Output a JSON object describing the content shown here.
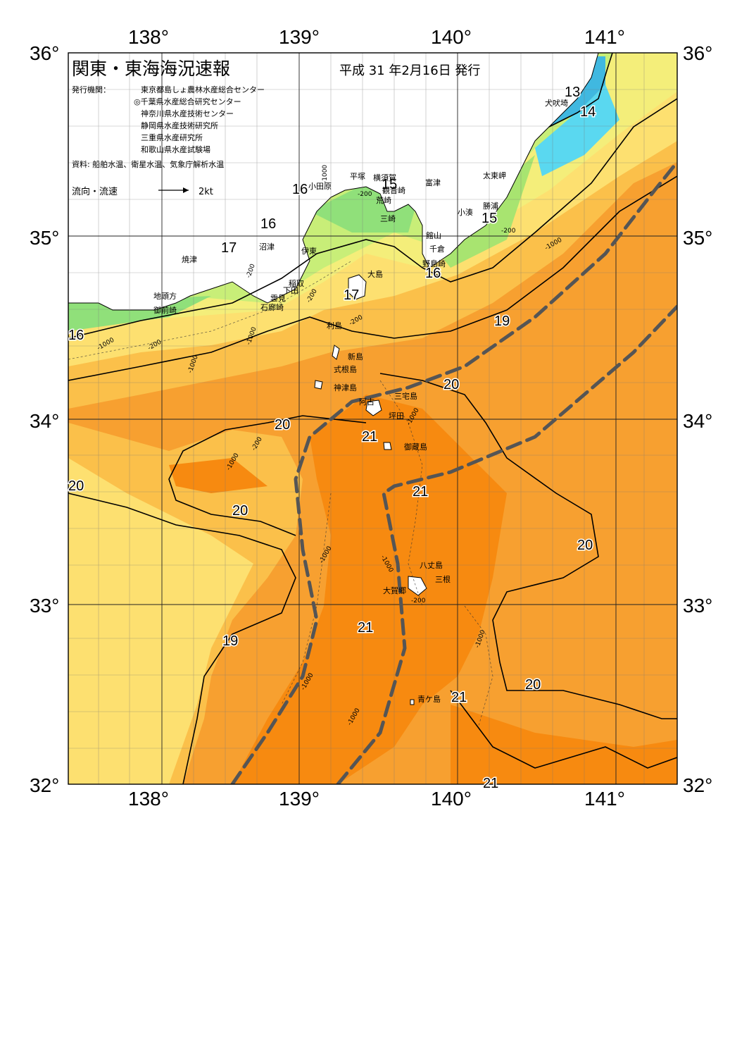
{
  "map": {
    "title": "関東・東海海況速報",
    "date": "平成 31 年2月16日 発行",
    "issuer_label": "発行機関：",
    "issuers": [
      "東京都島しょ農林水産総合センター",
      "◎千葉県水産総合研究センター",
      "神奈川県水産技術センター",
      "静岡県水産技術研究所",
      "三重県水産研究所",
      "和歌山県水産試験場"
    ],
    "sources": "資料: 船舶水温、衛星水温、気象庁解析水温",
    "legend_label": "流向・流速",
    "legend_scale": "2kt",
    "lon_labels": [
      "138°",
      "139°",
      "140°",
      "141°"
    ],
    "lat_labels": [
      "36°",
      "35°",
      "34°",
      "33°",
      "32°"
    ],
    "colors": {
      "ocean_20_21": "#f7a030",
      "ocean_21_plus": "#f78a10",
      "ocean_19_20": "#fbc04a",
      "ocean_18_19": "#fde070",
      "coast_17": "#c8ee78",
      "coast_16": "#90e07a",
      "cold_14": "#5ad8f0",
      "kuroshio_axis": "#555555"
    },
    "temp_labels": [
      "13",
      "14",
      "15",
      "16",
      "16",
      "16",
      "16",
      "17",
      "17",
      "19",
      "19",
      "20",
      "20",
      "20",
      "20",
      "20",
      "20",
      "21",
      "21",
      "21",
      "21",
      "21",
      "15"
    ],
    "depth_labels": [
      "-1000",
      "-200"
    ],
    "places": [
      "犬吠埼",
      "太東岬",
      "勝浦",
      "小湊",
      "平塚",
      "横須賀",
      "観音崎",
      "富津",
      "小田原",
      "荒崎",
      "三崎",
      "館山",
      "千倉",
      "野島崎",
      "大島",
      "沼津",
      "伊東",
      "焼津",
      "稲取",
      "下田",
      "雲見",
      "石廊崎",
      "地頭方",
      "御前崎",
      "利島",
      "新島",
      "式根島",
      "神津島",
      "三宅島",
      "阿古",
      "坪田",
      "御蔵島",
      "八丈島",
      "三根",
      "大賀郷",
      "青ケ島"
    ]
  }
}
